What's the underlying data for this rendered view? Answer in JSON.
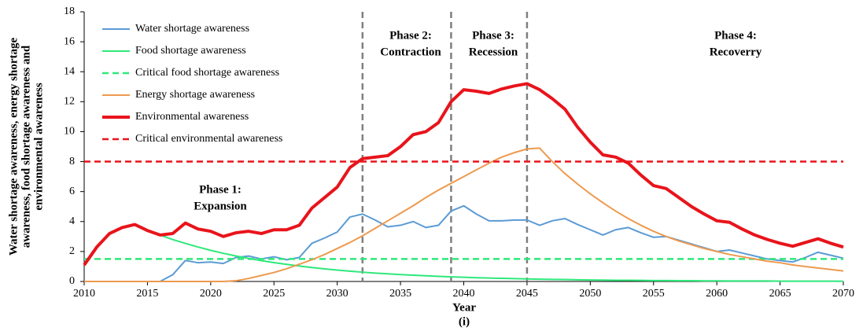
{
  "chart_data": {
    "type": "line",
    "x_label": "Year",
    "subtitle": "(i)",
    "y_label": [
      "Water shortage awareness, energy shortage",
      "awareness, food shortage awareness and",
      "environmental awareness"
    ],
    "x": [
      2010,
      2011,
      2012,
      2013,
      2014,
      2015,
      2016,
      2017,
      2018,
      2019,
      2020,
      2021,
      2022,
      2023,
      2024,
      2025,
      2026,
      2027,
      2028,
      2029,
      2030,
      2031,
      2032,
      2033,
      2034,
      2035,
      2036,
      2037,
      2038,
      2039,
      2040,
      2041,
      2042,
      2043,
      2044,
      2045,
      2046,
      2047,
      2048,
      2049,
      2050,
      2051,
      2052,
      2053,
      2054,
      2055,
      2056,
      2057,
      2058,
      2059,
      2060,
      2061,
      2062,
      2063,
      2064,
      2065,
      2066,
      2067,
      2068,
      2069,
      2070
    ],
    "xlim": [
      2010,
      2070
    ],
    "xticks": [
      2010,
      2015,
      2020,
      2025,
      2030,
      2035,
      2040,
      2045,
      2050,
      2055,
      2060,
      2065,
      2070
    ],
    "ylim": [
      0,
      18
    ],
    "yticks": [
      0,
      2,
      4,
      6,
      8,
      10,
      12,
      14,
      16,
      18
    ],
    "series": [
      {
        "name": "Water shortage awareness",
        "color": "#5b9bd5",
        "width": 2,
        "dashed": false,
        "values": [
          0,
          0,
          0,
          0,
          0,
          0,
          0,
          0.45,
          1.4,
          1.25,
          1.3,
          1.2,
          1.6,
          1.7,
          1.5,
          1.65,
          1.45,
          1.6,
          2.55,
          2.9,
          3.3,
          4.3,
          4.5,
          4.1,
          3.65,
          3.75,
          4.0,
          3.6,
          3.75,
          4.7,
          5.05,
          4.5,
          4.05,
          4.05,
          4.1,
          4.1,
          3.75,
          4.05,
          4.2,
          3.8,
          3.45,
          3.1,
          3.45,
          3.6,
          3.25,
          2.95,
          3.0,
          2.75,
          2.5,
          2.25,
          2.0,
          2.1,
          1.9,
          1.7,
          1.5,
          1.4,
          1.3,
          1.6,
          1.95,
          1.75,
          1.55
        ]
      },
      {
        "name": "Food shortage awareness",
        "color": "#2ee87a",
        "width": 2,
        "dashed": false,
        "values": [
          null,
          null,
          null,
          null,
          null,
          null,
          3.1,
          2.8,
          2.54,
          2.3,
          2.08,
          1.88,
          1.7,
          1.54,
          1.39,
          1.26,
          1.14,
          1.03,
          0.93,
          0.84,
          0.76,
          0.69,
          0.62,
          0.56,
          0.51,
          0.46,
          0.42,
          0.38,
          0.34,
          0.31,
          0.28,
          0.25,
          0.23,
          0.21,
          0.19,
          0.17,
          0.15,
          0.14,
          0.13,
          0.11,
          0.1,
          0.09,
          0.08,
          0.08,
          0.07,
          0.06,
          0.06,
          0.05,
          0.05,
          0.04,
          0.04,
          0.03,
          0.03,
          0.03,
          0.03,
          0.02,
          0.02,
          0.02,
          0.02,
          0.02,
          0.01
        ]
      },
      {
        "name": "Critical food shortage awareness",
        "color": "#2ee87a",
        "width": 2.5,
        "dashed": true,
        "level": 1.5
      },
      {
        "name": "Energy shortage awareness",
        "color": "#ed9a4f",
        "width": 2,
        "dashed": false,
        "values": [
          0,
          0,
          0,
          0,
          0,
          0,
          0,
          0,
          0,
          0,
          0,
          0,
          0.05,
          0.2,
          0.4,
          0.6,
          0.85,
          1.15,
          1.45,
          1.8,
          2.2,
          2.6,
          3.05,
          3.55,
          4.05,
          4.55,
          5.05,
          5.6,
          6.1,
          6.55,
          7.0,
          7.45,
          7.9,
          8.3,
          8.6,
          8.85,
          8.9,
          8.0,
          7.2,
          6.5,
          5.85,
          5.25,
          4.7,
          4.2,
          3.75,
          3.35,
          3.0,
          2.7,
          2.45,
          2.2,
          2.0,
          1.8,
          1.65,
          1.5,
          1.35,
          1.25,
          1.1,
          1.0,
          0.9,
          0.8,
          0.7
        ]
      },
      {
        "name": "Environmental awareness",
        "color": "#e8141b",
        "width": 4,
        "dashed": false,
        "values": [
          1.1,
          2.3,
          3.2,
          3.6,
          3.8,
          3.4,
          3.1,
          3.2,
          3.9,
          3.5,
          3.35,
          3.0,
          3.25,
          3.35,
          3.2,
          3.45,
          3.45,
          3.75,
          4.9,
          5.6,
          6.3,
          7.6,
          8.2,
          8.3,
          8.4,
          9.0,
          9.8,
          10.0,
          10.6,
          12.0,
          12.8,
          12.7,
          12.55,
          12.85,
          13.05,
          13.2,
          12.8,
          12.2,
          11.5,
          10.3,
          9.3,
          8.45,
          8.3,
          7.9,
          7.1,
          6.4,
          6.2,
          5.6,
          5.0,
          4.5,
          4.05,
          3.95,
          3.5,
          3.1,
          2.8,
          2.55,
          2.35,
          2.6,
          2.85,
          2.55,
          2.3
        ]
      },
      {
        "name": "Critical environmental awareness",
        "color": "#e8141b",
        "width": 2.5,
        "dashed": true,
        "level": 8
      }
    ],
    "phases": [
      {
        "x": 2032,
        "label": [
          "Phase 2:",
          "Contraction"
        ]
      },
      {
        "x": 2039,
        "label": [
          "Phase 3:",
          "Recession"
        ]
      },
      {
        "x": 2045,
        "label": [
          "Phase 4:",
          "Recoverry"
        ]
      }
    ],
    "first_phase_label": [
      "Phase 1:",
      "Expansion"
    ]
  }
}
